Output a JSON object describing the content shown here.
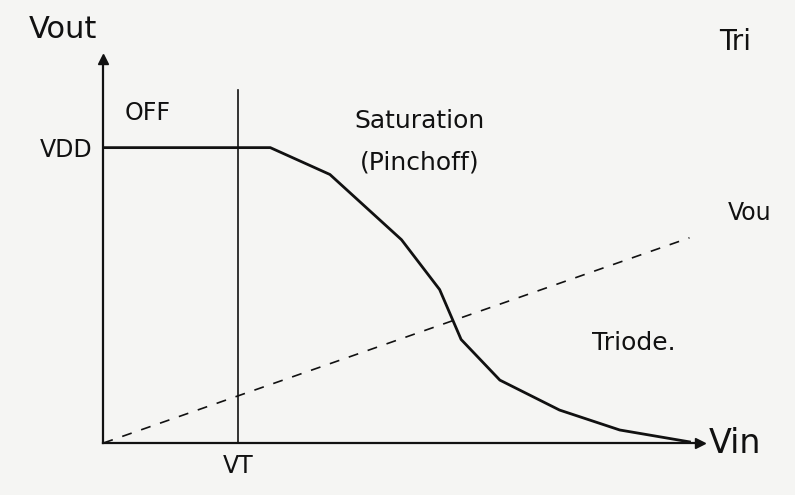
{
  "chart_data": {
    "type": "line",
    "x_label": "Vin",
    "y_label": "Vout",
    "xlim": [
      0,
      10
    ],
    "ylim": [
      0,
      10
    ],
    "xticks": [
      {
        "value": 2.26,
        "label": "VT"
      }
    ],
    "yticks": [
      {
        "value": 7.7,
        "label": "VDD"
      }
    ],
    "grid": false,
    "series": [
      {
        "color": "#111111",
        "line_style": "solid",
        "x": [
          0,
          2.26,
          2.8,
          3.8,
          5.0,
          5.64,
          6.0,
          6.65,
          7.65,
          8.66,
          9.83
        ],
        "values": [
          7.7,
          7.7,
          7.7,
          7.0,
          5.3,
          4.0,
          2.7,
          1.64,
          0.86,
          0.34,
          0.03
        ]
      },
      {
        "color": "#111111",
        "line_style": "dashed",
        "x": [
          0,
          9.83
        ],
        "values": [
          0,
          5.35
        ]
      }
    ],
    "annotations": [
      {
        "text": "OFF"
      },
      {
        "text": "Saturation"
      },
      {
        "text": "(Pinchoff)"
      },
      {
        "text": "Triode."
      },
      {
        "text": "Tri"
      },
      {
        "text": "Vou"
      }
    ]
  }
}
